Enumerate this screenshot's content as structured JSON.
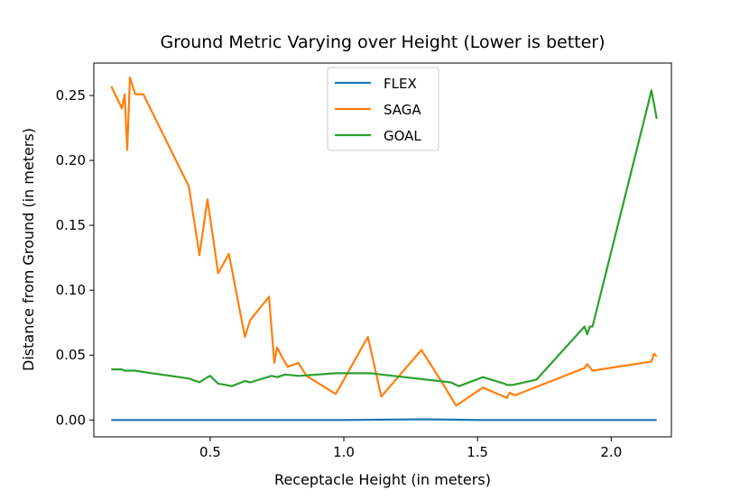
{
  "chart_data": {
    "type": "line",
    "title": "Ground Metric Varying over Height (Lower is better)",
    "xlabel": "Receptacle Height (in meters)",
    "ylabel": "Distance from Ground (in meters)",
    "xlim": [
      0.065,
      2.225
    ],
    "ylim": [
      -0.013,
      0.275
    ],
    "xticks": [
      "0.5",
      "1.0",
      "1.5",
      "2.0"
    ],
    "yticks": [
      "0.00",
      "0.05",
      "0.10",
      "0.15",
      "0.20",
      "0.25"
    ],
    "grid": false,
    "legend_position": "upper center",
    "series": [
      {
        "name": "FLEX",
        "color": "#1f77b4",
        "x": [
          0.13,
          0.5,
          1.0,
          1.3,
          1.5,
          2.0,
          2.17
        ],
        "y": [
          0.0,
          0.0,
          0.0,
          0.0005,
          0.0,
          0.0,
          0.0
        ]
      },
      {
        "name": "SAGA",
        "color": "#ff7f0e",
        "x": [
          0.13,
          0.17,
          0.18,
          0.19,
          0.2,
          0.22,
          0.25,
          0.42,
          0.46,
          0.49,
          0.53,
          0.57,
          0.63,
          0.65,
          0.72,
          0.74,
          0.75,
          0.77,
          0.79,
          0.83,
          0.86,
          0.97,
          1.09,
          1.14,
          1.29,
          1.37,
          1.42,
          1.52,
          1.61,
          1.62,
          1.64,
          1.9,
          1.91,
          1.93,
          2.15,
          2.16,
          2.17
        ],
        "y": [
          0.257,
          0.24,
          0.251,
          0.208,
          0.264,
          0.251,
          0.251,
          0.18,
          0.127,
          0.17,
          0.113,
          0.128,
          0.064,
          0.077,
          0.095,
          0.044,
          0.056,
          0.048,
          0.041,
          0.044,
          0.034,
          0.02,
          0.064,
          0.018,
          0.054,
          0.028,
          0.011,
          0.025,
          0.017,
          0.021,
          0.019,
          0.04,
          0.043,
          0.038,
          0.045,
          0.051,
          0.049
        ]
      },
      {
        "name": "GOAL",
        "color": "#2ca02c",
        "x": [
          0.13,
          0.17,
          0.18,
          0.2,
          0.22,
          0.25,
          0.42,
          0.46,
          0.49,
          0.5,
          0.53,
          0.56,
          0.58,
          0.63,
          0.65,
          0.73,
          0.75,
          0.78,
          0.83,
          0.97,
          1.1,
          1.14,
          1.4,
          1.43,
          1.52,
          1.6,
          1.61,
          1.63,
          1.72,
          1.9,
          1.91,
          1.92,
          1.93,
          2.14,
          2.15,
          2.16,
          2.17
        ],
        "y": [
          0.039,
          0.039,
          0.038,
          0.038,
          0.038,
          0.037,
          0.032,
          0.029,
          0.033,
          0.034,
          0.028,
          0.027,
          0.026,
          0.03,
          0.029,
          0.034,
          0.033,
          0.035,
          0.034,
          0.036,
          0.036,
          0.035,
          0.029,
          0.026,
          0.033,
          0.028,
          0.027,
          0.027,
          0.031,
          0.072,
          0.066,
          0.072,
          0.072,
          0.245,
          0.254,
          0.244,
          0.232
        ]
      }
    ]
  }
}
